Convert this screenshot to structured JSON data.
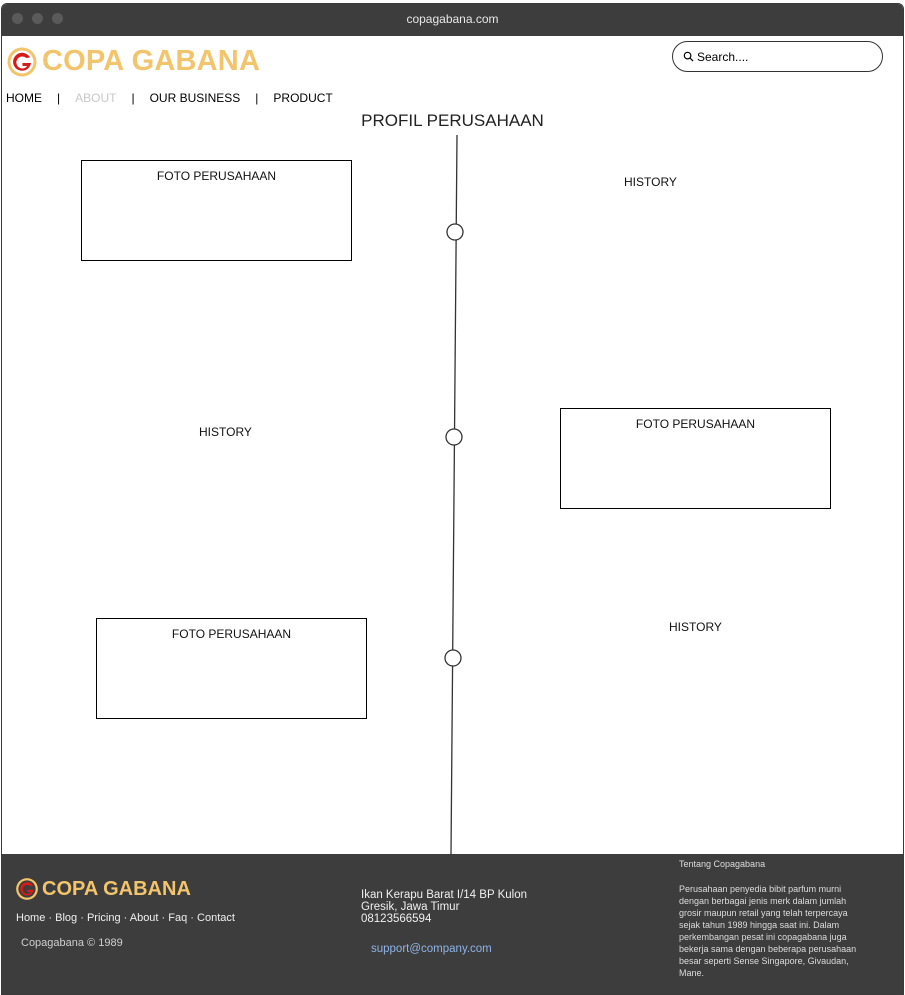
{
  "browser": {
    "url": "copagabana.com"
  },
  "header": {
    "brand": "COPA GABANA",
    "search_placeholder": "Search...."
  },
  "nav": {
    "items": [
      {
        "label": "HOME"
      },
      {
        "label": "ABOUT"
      },
      {
        "label": "OUR BUSINESS"
      },
      {
        "label": "PRODUCT"
      }
    ],
    "separator": "|"
  },
  "page": {
    "title": "PROFIL PERUSAHAAN",
    "photo_label": "FOTO PERUSAHAAN",
    "history_label": "HISTORY"
  },
  "footer": {
    "brand": "COPA GABANA",
    "links": [
      "Home",
      "Blog",
      "Pricing",
      "About",
      "Faq",
      "Contact"
    ],
    "link_separator": " · ",
    "copyright": "Copagabana © 1989",
    "address_line1": "Ikan Kerapu Barat I/14 BP Kulon",
    "address_line2": "Gresik, Jawa Timur",
    "phone": "08123566594",
    "email": "support@company.com",
    "about_title": "Tentang Copagabana",
    "about_text": "Perusahaan penyedia bibit parfum murni dengan berbagai jenis merk dalam jumlah grosir maupun retail yang telah terpercaya sejak tahun 1989 hingga saat ini. Dalam perkembangan pesat ini copagabana juga bekerja sama dengan beberapa perusahaan besar seperti Sense Singapore, Givaudan, Mane."
  },
  "colors": {
    "brand": "#f2c46b",
    "logo_red": "#d71a1a",
    "titlebar": "#3d3d3d",
    "footer_bg": "#3d3d3d",
    "nav_active": "#c8c8c8",
    "link_blue": "#8fb3e6"
  }
}
